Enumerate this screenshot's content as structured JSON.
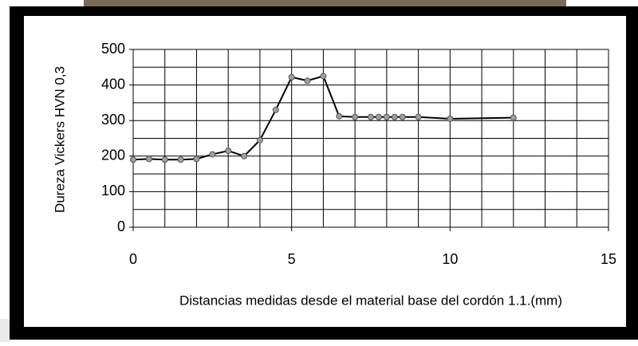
{
  "chart_data": {
    "type": "line",
    "xlabel": "Distancias medidas desde el material base del cordón 1.1.(mm)",
    "ylabel": "Dureza Vickers HVN 0,3",
    "x": [
      0,
      0.5,
      1,
      1.5,
      2,
      2.5,
      3,
      3.5,
      4,
      4.5,
      5,
      5.5,
      6,
      6.5,
      7,
      7.5,
      7.75,
      8,
      8.25,
      8.5,
      9,
      10,
      12
    ],
    "series": [
      {
        "color": "#000000",
        "marker_color": "#a0a0a0",
        "values": [
          190,
          192,
          190,
          190,
          192,
          205,
          215,
          200,
          245,
          330,
          422,
          412,
          425,
          312,
          310,
          310,
          310,
          310,
          310,
          310,
          310,
          305,
          308
        ]
      }
    ],
    "xlim": [
      0,
      15
    ],
    "xticks": [
      0,
      5,
      10,
      15
    ],
    "ylim": [
      0,
      500
    ],
    "yticks": [
      0,
      100,
      200,
      300,
      400,
      500
    ],
    "xgrid": [
      1,
      2,
      3,
      4,
      5,
      6,
      7,
      8,
      9,
      10,
      11,
      12,
      13,
      14
    ],
    "ygrid": [
      50,
      100,
      150,
      200,
      250,
      300,
      350,
      400,
      450
    ],
    "grid": true
  }
}
